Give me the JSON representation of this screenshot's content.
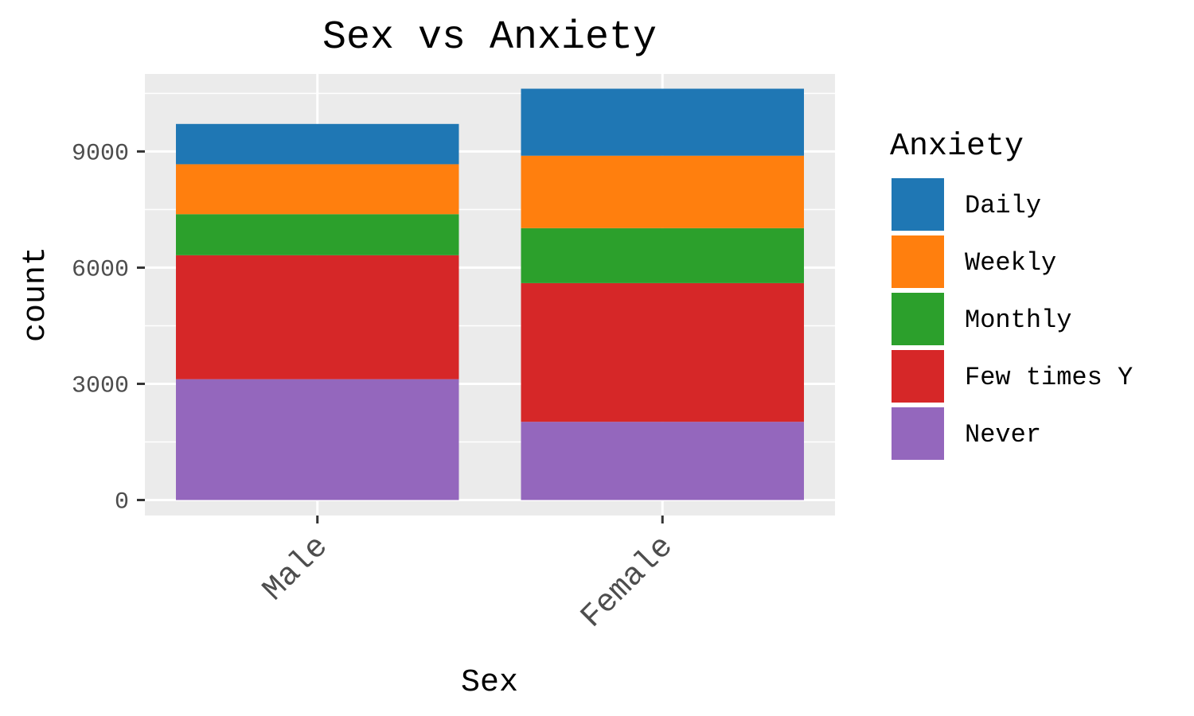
{
  "chart_data": {
    "type": "bar",
    "stacked": true,
    "title": "Sex vs Anxiety",
    "xlabel": "Sex",
    "ylabel": "count",
    "categories": [
      "Male",
      "Female"
    ],
    "ylim": [
      -400,
      11000
    ],
    "yticks": [
      0,
      3000,
      6000,
      9000
    ],
    "y_tick_labels": [
      "0",
      "3000",
      "6000",
      "9000"
    ],
    "grid": true,
    "legend": {
      "title": "Anxiety",
      "position": "right",
      "order": [
        "Daily",
        "Weekly",
        "Monthly",
        "Few times Y",
        "Never"
      ]
    },
    "series": [
      {
        "name": "Never",
        "values": [
          3120,
          2020
        ],
        "color": "#9467bd"
      },
      {
        "name": "Few times Y",
        "values": [
          3200,
          3580
        ],
        "color": "#d62728"
      },
      {
        "name": "Monthly",
        "values": [
          1060,
          1420
        ],
        "color": "#2ca02c"
      },
      {
        "name": "Weekly",
        "values": [
          1290,
          1870
        ],
        "color": "#ff7f0e"
      },
      {
        "name": "Daily",
        "values": [
          1040,
          1730
        ],
        "color": "#1f77b4"
      }
    ],
    "colors": {
      "panel_background": "#ebebeb",
      "grid": "#ffffff",
      "axis_text": "#4d4d4d"
    }
  }
}
